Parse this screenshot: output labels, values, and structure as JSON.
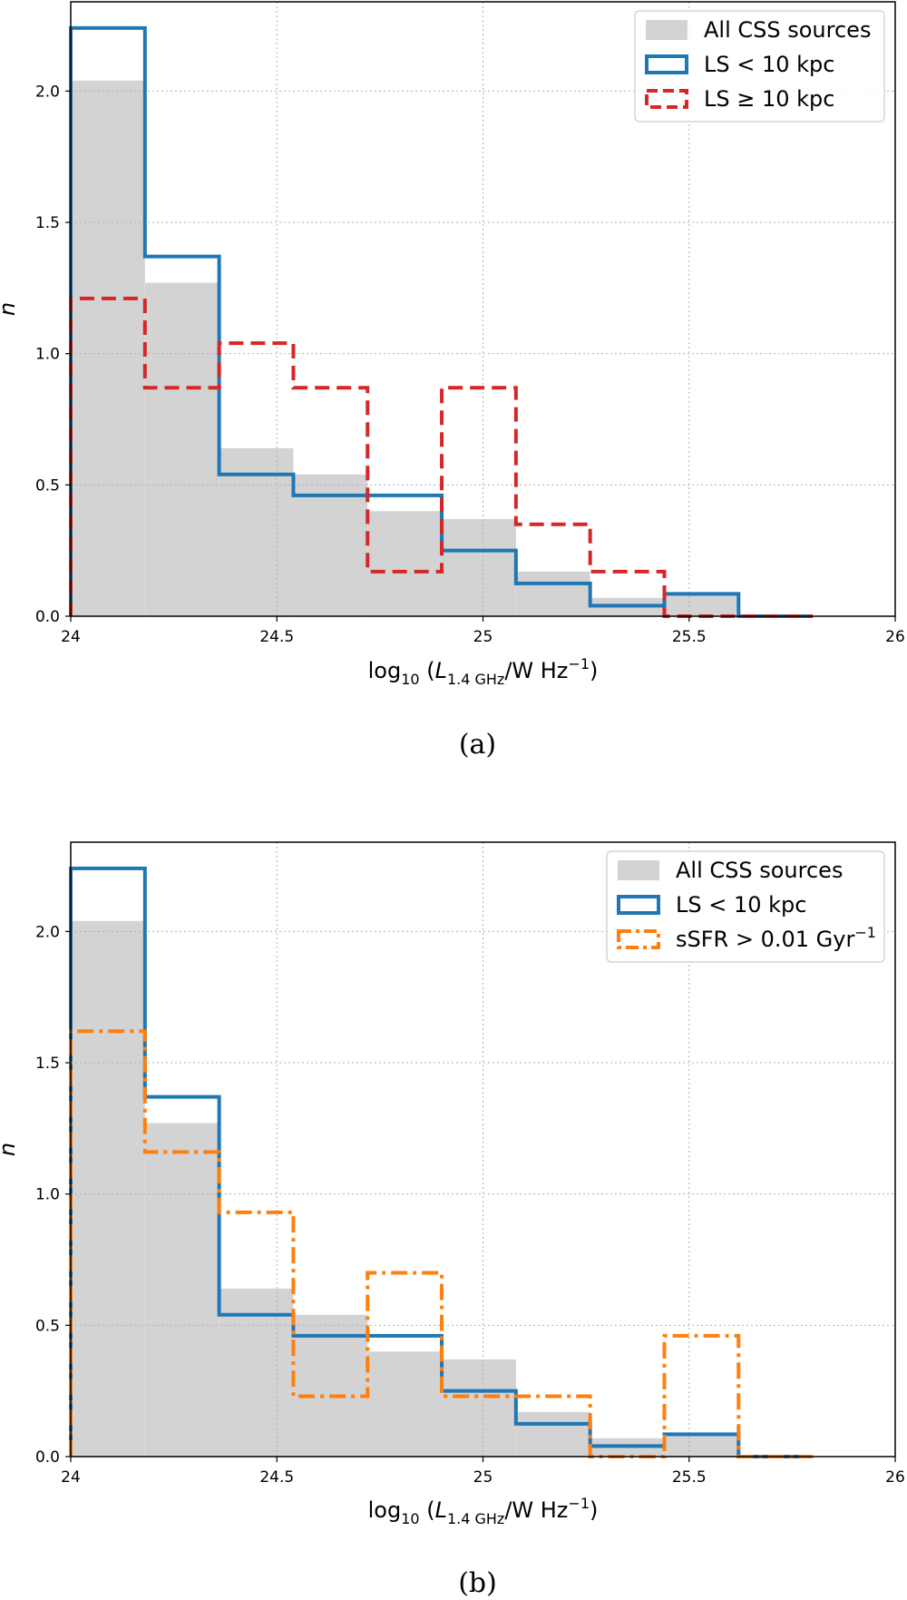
{
  "figure": {
    "chart_data": [
      {
        "type": "histogram",
        "panel": "a",
        "caption": "(a)",
        "xlabel": {
          "pre": "log",
          "sub": "10",
          "mid": " (",
          "L": "L",
          "lsub": "1.4 GHz",
          "post": "/W Hz",
          "sup": "−1",
          "close": ")"
        },
        "ylabel": "n",
        "xlim": [
          24,
          26
        ],
        "ylim": [
          0,
          2.34
        ],
        "bin_edges": [
          24.0,
          24.18,
          24.36,
          24.54,
          24.72,
          24.9,
          25.08,
          25.26,
          25.44,
          25.62,
          25.8
        ],
        "x_ticks": [
          24,
          24.5,
          25,
          25.5,
          26
        ],
        "x_tick_labels": [
          "24",
          "24.5",
          "25",
          "25.5",
          "26"
        ],
        "y_ticks": [
          0,
          0.5,
          1.0,
          1.5,
          2.0
        ],
        "y_tick_labels": [
          "0.0",
          "0.5",
          "1.0",
          "1.5",
          "2.0"
        ],
        "grid": true,
        "legend_position": "top-right",
        "series": [
          {
            "name": "All CSS sources",
            "style": "filled",
            "color": "#d3d3d3",
            "values": [
              2.04,
              1.27,
              0.64,
              0.54,
              0.4,
              0.37,
              0.17,
              0.07,
              0.08,
              0.0
            ]
          },
          {
            "name": "LS < 10 kpc",
            "style": "solid",
            "color": "#1f77b4",
            "values": [
              2.24,
              1.37,
              0.54,
              0.46,
              0.46,
              0.25,
              0.125,
              0.04,
              0.085,
              0.0
            ]
          },
          {
            "name": "LS ≥ 10 kpc",
            "style": "dashed",
            "color": "#d62728",
            "values": [
              1.21,
              0.87,
              1.04,
              0.87,
              0.17,
              0.87,
              0.35,
              0.17,
              0.0,
              0.0
            ]
          }
        ]
      },
      {
        "type": "histogram",
        "panel": "b",
        "caption": "(b)",
        "xlabel": {
          "pre": "log",
          "sub": "10",
          "mid": " (",
          "L": "L",
          "lsub": "1.4 GHz",
          "post": "/W Hz",
          "sup": "−1",
          "close": ")"
        },
        "ylabel": "n",
        "xlim": [
          24,
          26
        ],
        "ylim": [
          0,
          2.34
        ],
        "bin_edges": [
          24.0,
          24.18,
          24.36,
          24.54,
          24.72,
          24.9,
          25.08,
          25.26,
          25.44,
          25.62,
          25.8
        ],
        "x_ticks": [
          24,
          24.5,
          25,
          25.5,
          26
        ],
        "x_tick_labels": [
          "24",
          "24.5",
          "25",
          "25.5",
          "26"
        ],
        "y_ticks": [
          0,
          0.5,
          1.0,
          1.5,
          2.0
        ],
        "y_tick_labels": [
          "0.0",
          "0.5",
          "1.0",
          "1.5",
          "2.0"
        ],
        "grid": true,
        "legend_position": "top-right",
        "series": [
          {
            "name": "All CSS sources",
            "style": "filled",
            "color": "#d3d3d3",
            "values": [
              2.04,
              1.27,
              0.64,
              0.54,
              0.4,
              0.37,
              0.17,
              0.07,
              0.08,
              0.0
            ]
          },
          {
            "name": "LS < 10 kpc",
            "style": "solid",
            "color": "#1f77b4",
            "values": [
              2.24,
              1.37,
              0.54,
              0.46,
              0.46,
              0.25,
              0.125,
              0.04,
              0.085,
              0.0
            ]
          },
          {
            "name": "sSFR > 0.01 Gyr",
            "name_sup": "−1",
            "style": "dashdot",
            "color": "#ff7f0e",
            "values": [
              1.62,
              1.16,
              0.93,
              0.23,
              0.7,
              0.23,
              0.23,
              0.0,
              0.46,
              0.0
            ]
          }
        ]
      }
    ]
  }
}
